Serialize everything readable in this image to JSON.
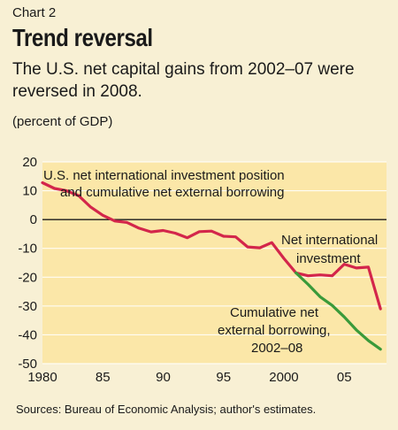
{
  "header": {
    "chart_number": "Chart 2",
    "title": "Trend reversal",
    "subtitle": "The U.S. net capital gains from 2002–07 were reversed in 2008."
  },
  "unit_label": "(percent of GDP)",
  "source": "Sources: Bureau of Economic Analysis; author's estimates.",
  "colors": {
    "background": "#f8f0d4",
    "plot_area": "#fbe7a8",
    "niip_line": "#d3264b",
    "borrowing_line": "#3a9a3a",
    "zero_line": "#1a1a1a",
    "grid": "#ffffff"
  },
  "chart_data": {
    "type": "line",
    "title": "Trend reversal",
    "subtitle": "The U.S. net capital gains from 2002–07 were reversed in 2008.",
    "ylabel": "(percent of GDP)",
    "xlabel": "",
    "ylim": [
      -50,
      20
    ],
    "xlim": [
      1980,
      2008.5
    ],
    "yticks": [
      20,
      10,
      0,
      -10,
      -20,
      -30,
      -40,
      -50
    ],
    "xticks": [
      1980,
      1985,
      1990,
      1995,
      2000,
      2005
    ],
    "xtick_labels": [
      "1980",
      "85",
      "90",
      "95",
      "2000",
      "05"
    ],
    "grid": true,
    "series": [
      {
        "color": "#d3264b",
        "x": [
          1980,
          1981,
          1982,
          1983,
          1984,
          1985,
          1986,
          1987,
          1988,
          1989,
          1990,
          1991,
          1992,
          1993,
          1994,
          1995,
          1996,
          1997,
          1998,
          1999,
          2000,
          2001,
          2002,
          2003,
          2004,
          2005,
          2006,
          2007,
          2008
        ],
        "values": [
          12.8,
          10.8,
          10.0,
          8.3,
          4.3,
          1.5,
          -0.5,
          -1.0,
          -3.0,
          -4.3,
          -3.8,
          -4.7,
          -6.3,
          -4.2,
          -4.0,
          -5.8,
          -6.0,
          -9.5,
          -9.8,
          -8.0,
          -13.5,
          -18.5,
          -19.5,
          -19.2,
          -19.5,
          -15.5,
          -16.8,
          -16.5,
          -31.0
        ]
      },
      {
        "color": "#3a9a3a",
        "x": [
          2001,
          2002,
          2003,
          2004,
          2005,
          2006,
          2007,
          2008
        ],
        "values": [
          -18.5,
          -22.5,
          -26.8,
          -29.8,
          -33.8,
          -38.3,
          -42.0,
          -45.0
        ]
      }
    ],
    "annotations": [
      {
        "text": "U.S. net international investment position"
      },
      {
        "text": "and cumulative net external borrowing"
      },
      {
        "text": "Net international"
      },
      {
        "text": "investment"
      },
      {
        "text": "Cumulative net"
      },
      {
        "text": "external borrowing,"
      },
      {
        "text": "2002–08"
      }
    ]
  }
}
